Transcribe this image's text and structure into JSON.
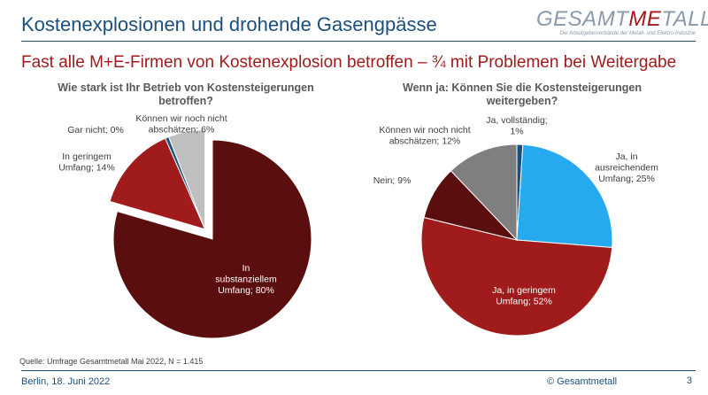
{
  "header": {
    "title": "Kostenexplosionen und drohende Gasengpässe",
    "logo_main_1": "GESAMT",
    "logo_main_2": "ME",
    "logo_main_3": "TALL",
    "logo_sub": "Die Arbeitgeberverbände der Metall- und Elektro-Industrie"
  },
  "headline": "Fast alle M+E-Firmen von Kostenexplosion betroffen – ¾ mit Problemen bei Weitergabe",
  "chart_data": [
    {
      "type": "pie",
      "title": "Wie stark ist Ihr Betrieb von Kostensteigerungen betroffen?",
      "slices": [
        {
          "label": "In substanziellem Umfang; 80%",
          "lines": [
            "In",
            "substanziellem",
            "Umfang; 80%"
          ],
          "value": 80,
          "color": "#5a0e0e",
          "exploded": false
        },
        {
          "label": "In geringem Umfang; 14%",
          "lines": [
            "In geringem",
            "Umfang; 14%"
          ],
          "value": 14,
          "color": "#a01b1b",
          "exploded": true
        },
        {
          "label": "Gar nicht; 0%",
          "lines": [
            "Gar nicht; 0%"
          ],
          "value": 0.6,
          "display_value": 0,
          "color": "#1c4f7c",
          "exploded": true
        },
        {
          "label": "Können wir noch nicht abschätzen; 6%",
          "lines": [
            "Können wir noch nicht",
            "abschätzen; 6%"
          ],
          "value": 6,
          "color": "#bfbfbf",
          "exploded": true
        }
      ]
    },
    {
      "type": "pie",
      "title": "Wenn ja: Können Sie die Kostensteigerungen weitergeben?",
      "slices": [
        {
          "label": "Ja, vollständig; 1%",
          "lines": [
            "Ja, vollständig;",
            "1%"
          ],
          "value": 1,
          "color": "#1c4f7c"
        },
        {
          "label": "Ja, in ausreichendem Umfang; 25%",
          "lines": [
            "Ja, in",
            "ausreichendem",
            "Umfang; 25%"
          ],
          "value": 25,
          "color": "#27a9f0"
        },
        {
          "label": "Ja, in geringem Umfang; 52%",
          "lines": [
            "Ja, in geringem",
            "Umfang; 52%"
          ],
          "value": 52,
          "color": "#a01b1b"
        },
        {
          "label": "Nein; 9%",
          "lines": [
            "Nein; 9%"
          ],
          "value": 9,
          "color": "#5a0e0e"
        },
        {
          "label": "Können wir noch nicht abschätzen; 12%",
          "lines": [
            "Können wir noch nicht",
            "abschätzen; 12%"
          ],
          "value": 12,
          "color": "#7f7f7f"
        }
      ]
    }
  ],
  "source": "Quelle: Umfrage Gesamtmetall Mai 2022, N = 1.415",
  "footer": {
    "date": "Berlin, 18. Juni 2022",
    "copyright": "© Gesamtmetall",
    "page": "3"
  }
}
